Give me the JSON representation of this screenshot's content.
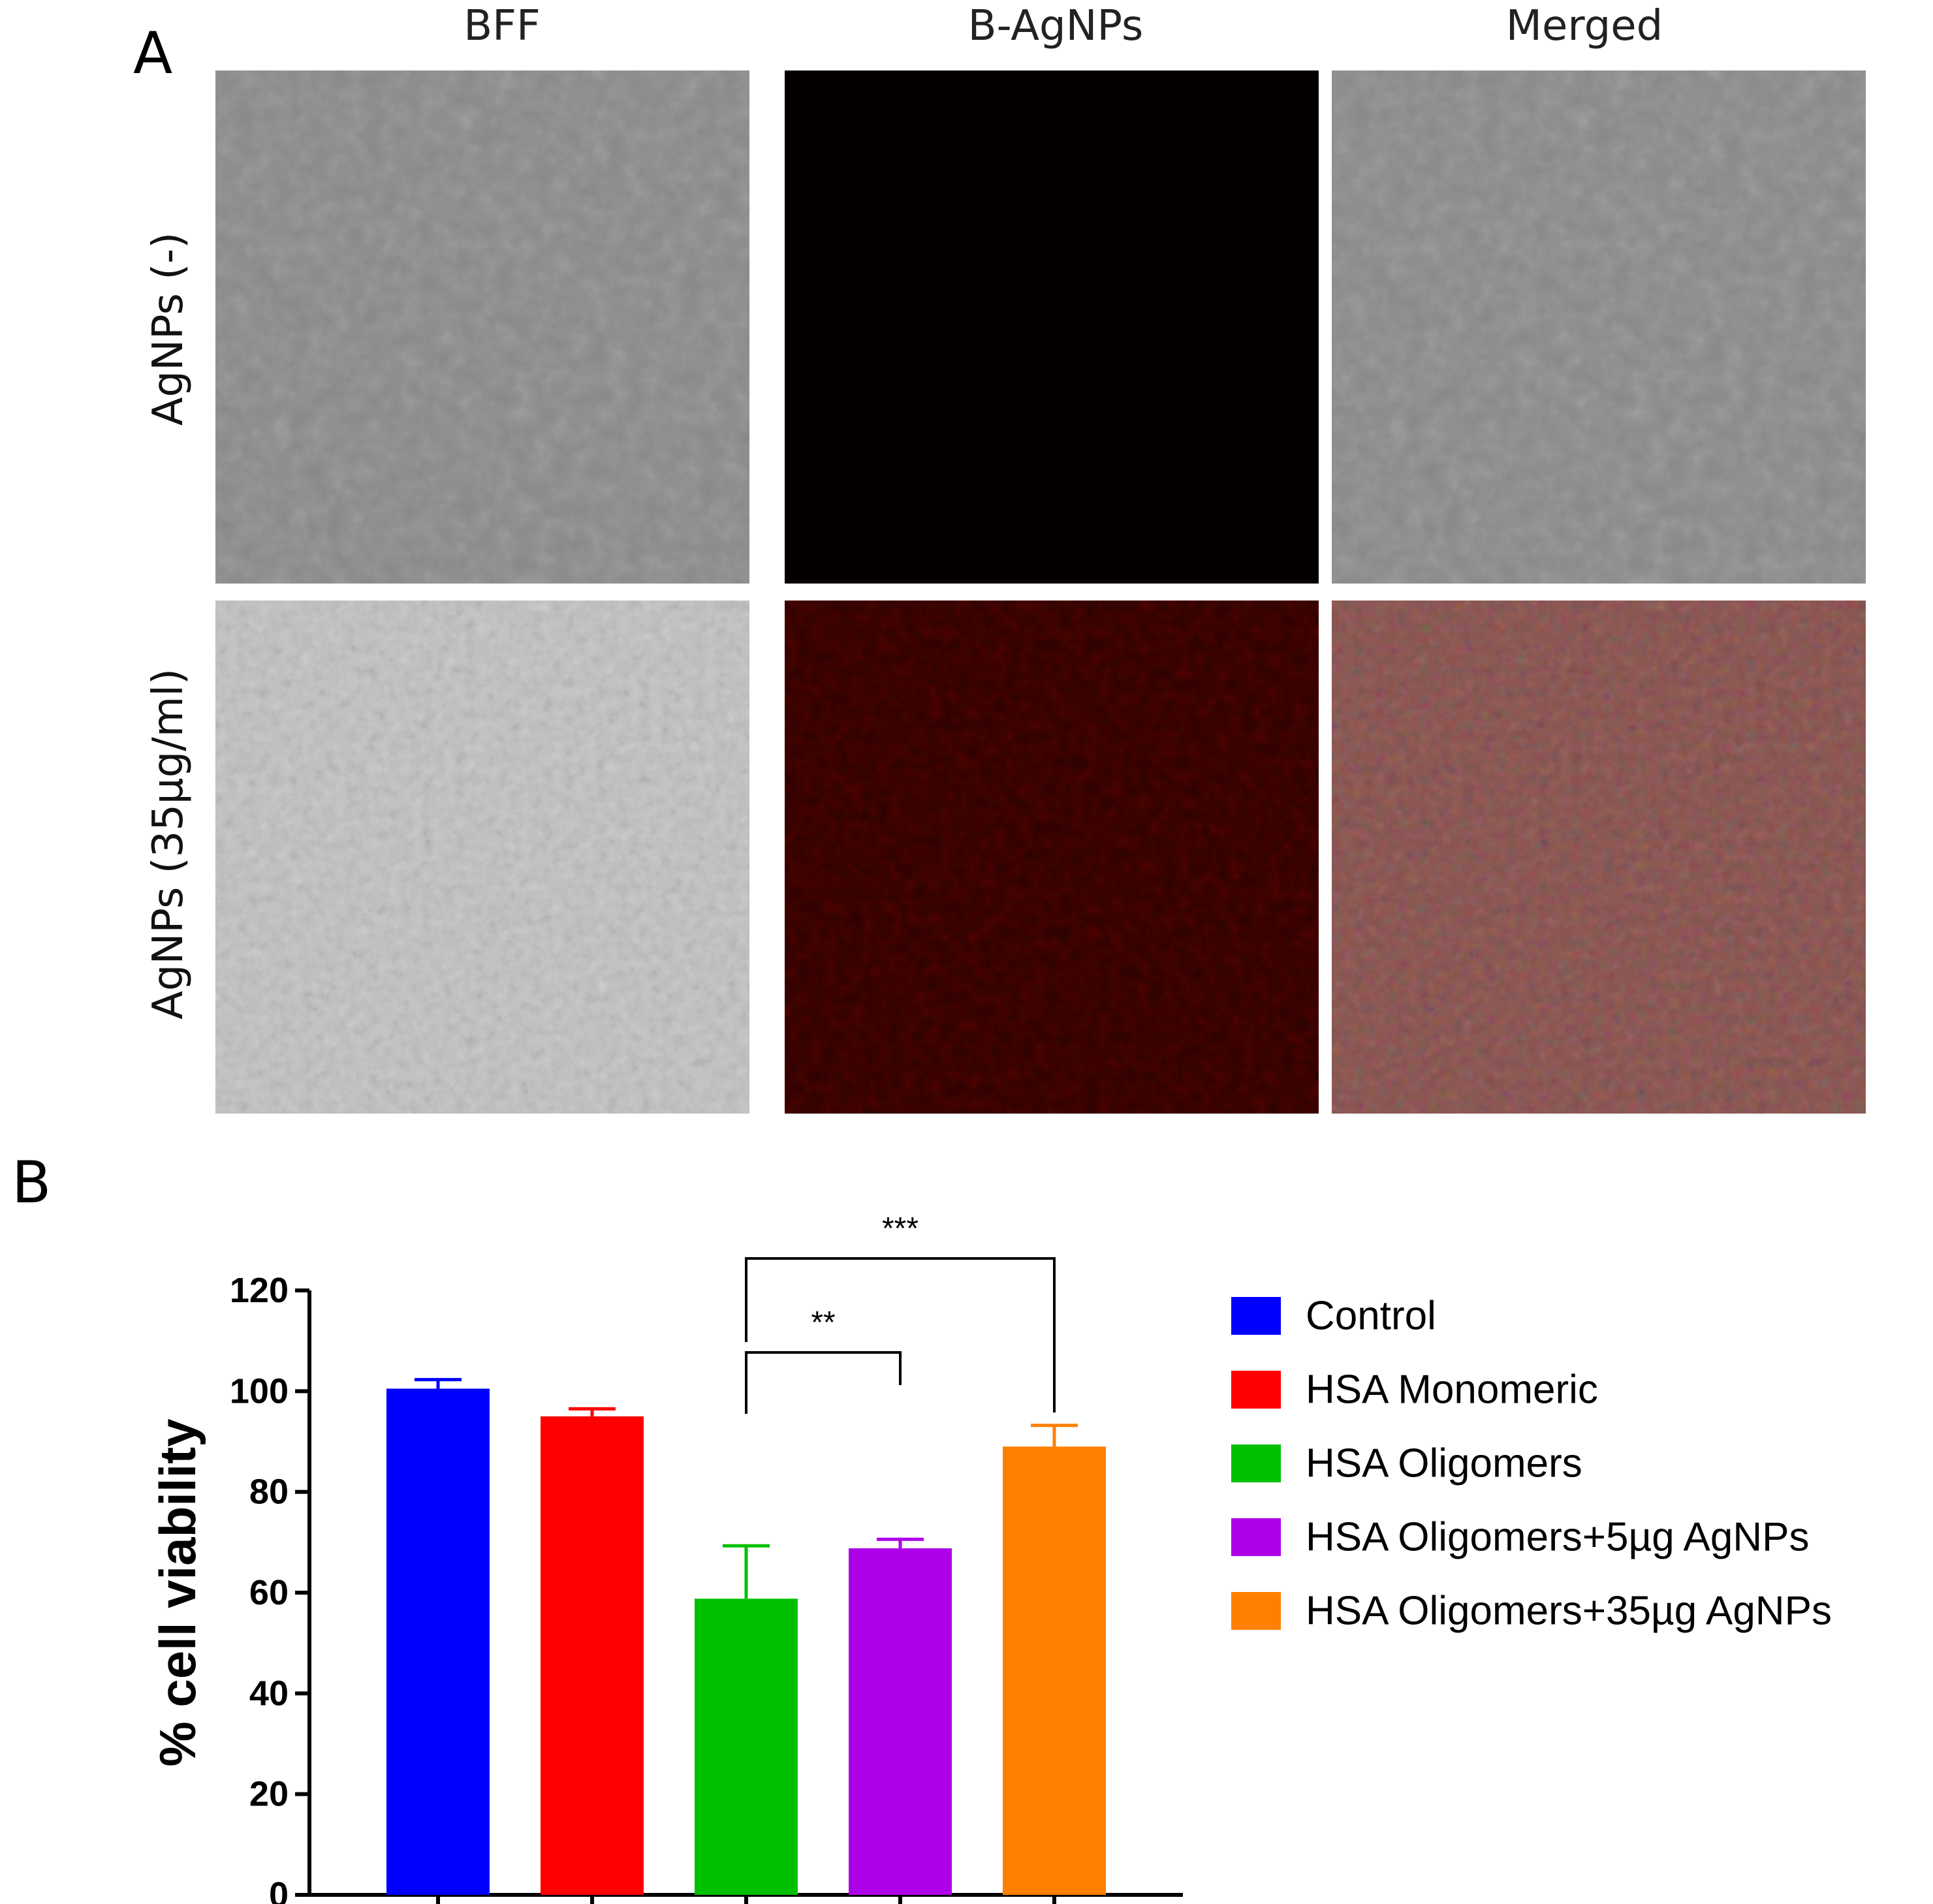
{
  "panel_a": {
    "letter": "A",
    "columns": [
      "BFF",
      "B-AgNPs",
      "Merged"
    ],
    "rows": [
      "AgNPs (-)",
      "AgNPs (35µg/ml)"
    ],
    "image_tints": {
      "bright_field": "#8a8a8a",
      "bright_field_dense": "#c4c4c4",
      "fluorescence_off": "#040000",
      "fluorescence_on": "#2a0300",
      "merged_on": "#8a5550"
    }
  },
  "panel_b": {
    "letter": "B"
  },
  "chart_data": {
    "type": "bar",
    "categories": [
      "Control",
      "HSA Monomeric",
      "HSA Oligomers",
      "HSA Oligomers+5µg AgNPs",
      "HSA Oligomers+35µg AgNPs"
    ],
    "values": [
      100.5,
      95,
      58.8,
      68.8,
      89
    ],
    "errors": [
      1.8,
      1.5,
      10.5,
      1.8,
      4.2
    ],
    "colors": [
      "#0000ff",
      "#ff0000",
      "#00c000",
      "#ae00e8",
      "#ff8000"
    ],
    "ylabel": "% cell viability",
    "xlabel": "",
    "ylim": [
      0,
      120
    ],
    "yticks": [
      0,
      20,
      40,
      60,
      80,
      100,
      120
    ],
    "legend": {
      "placement": "right",
      "entries": [
        "Control",
        "HSA Monomeric",
        "HSA Oligomers",
        "HSA Oligomers+5µg AgNPs",
        "HSA Oligomers+35µg AgNPs"
      ]
    },
    "significance": [
      {
        "from": 2,
        "to": 3,
        "label": "**"
      },
      {
        "from": 2,
        "to": 4,
        "label": "***"
      }
    ],
    "grid": false
  }
}
